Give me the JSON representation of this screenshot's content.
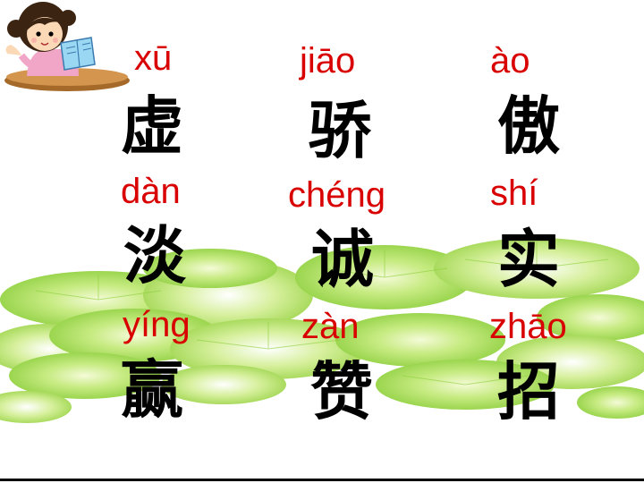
{
  "colors": {
    "pinyin": "#d80000",
    "hanzi": "#000000",
    "leaf": "#a9db5a"
  },
  "illustration": "reading-girl-icon",
  "cards": [
    {
      "pinyin": "xū",
      "hanzi": "虚"
    },
    {
      "pinyin": "jiāo",
      "hanzi": "骄"
    },
    {
      "pinyin": "ào",
      "hanzi": "傲"
    },
    {
      "pinyin": "dàn",
      "hanzi": "淡"
    },
    {
      "pinyin": "chéng",
      "hanzi": "诚"
    },
    {
      "pinyin": "shí",
      "hanzi": "实"
    },
    {
      "pinyin": "yíng",
      "hanzi": "赢"
    },
    {
      "pinyin": "zàn",
      "hanzi": "赞"
    },
    {
      "pinyin": "zhāo",
      "hanzi": "招"
    }
  ]
}
